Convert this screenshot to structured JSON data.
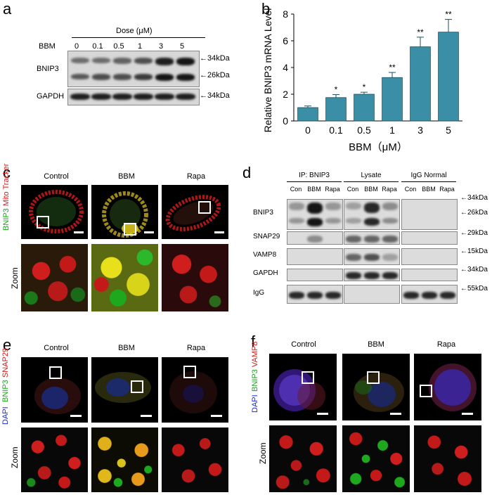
{
  "panels": {
    "a": {
      "label": "a",
      "dose_header": "Dose (μM)",
      "bbm_label": "BBM",
      "doses": [
        "0",
        "0.1",
        "0.5",
        "1",
        "3",
        "5"
      ],
      "rows": [
        "BNIP3",
        "GAPDH"
      ],
      "markers": [
        "←34kDa",
        "←26kDa",
        "←34kDa"
      ]
    },
    "b": {
      "label": "b"
    },
    "c": {
      "label": "c",
      "columns": [
        "Control",
        "BBM",
        "Rapa"
      ],
      "stain_green": "BNIP3",
      "stain_red": "Mito Tracker",
      "zoom_label": "Zoom"
    },
    "d": {
      "label": "d",
      "group_headers": [
        "IP:  BNIP3",
        "Lysate",
        "IgG Normal"
      ],
      "lanes": [
        "Con",
        "BBM",
        "Rapa"
      ],
      "rows": [
        "BNIP3",
        "SNAP29",
        "VAMP8",
        "GAPDH",
        "IgG"
      ],
      "markers": [
        "←34kDa",
        "←26kDa",
        "←29kDa",
        "←15kDa",
        "←34kDa",
        "←55kDa"
      ]
    },
    "e": {
      "label": "e",
      "columns": [
        "Control",
        "BBM",
        "Rapa"
      ],
      "stain_green": "BNIP3",
      "stain_red": "SNAP29",
      "stain_blue": "DAPI",
      "zoom_label": "Zoom"
    },
    "f": {
      "label": "f",
      "columns": [
        "Control",
        "BBM",
        "Rapa"
      ],
      "stain_green": "BNIP3",
      "stain_red": "VAMP8",
      "stain_blue": "DAPI",
      "zoom_label": "Zoom"
    }
  },
  "chart_data": {
    "type": "bar",
    "categories": [
      "0",
      "0.1",
      "0.5",
      "1",
      "3",
      "5"
    ],
    "values": [
      1.0,
      1.75,
      2.0,
      3.25,
      5.55,
      6.65
    ],
    "errors": [
      0.12,
      0.22,
      0.15,
      0.38,
      0.72,
      0.95
    ],
    "significance": [
      "",
      "*",
      "*",
      "**",
      "**",
      "**"
    ],
    "xlabel": "BBM（μM）",
    "ylabel": "Relative BNIP3 mRNA Level",
    "ylim": [
      0,
      8
    ],
    "yticks": [
      0,
      2,
      4,
      6,
      8
    ],
    "bar_color": "#3a8ea5",
    "grid": false
  }
}
